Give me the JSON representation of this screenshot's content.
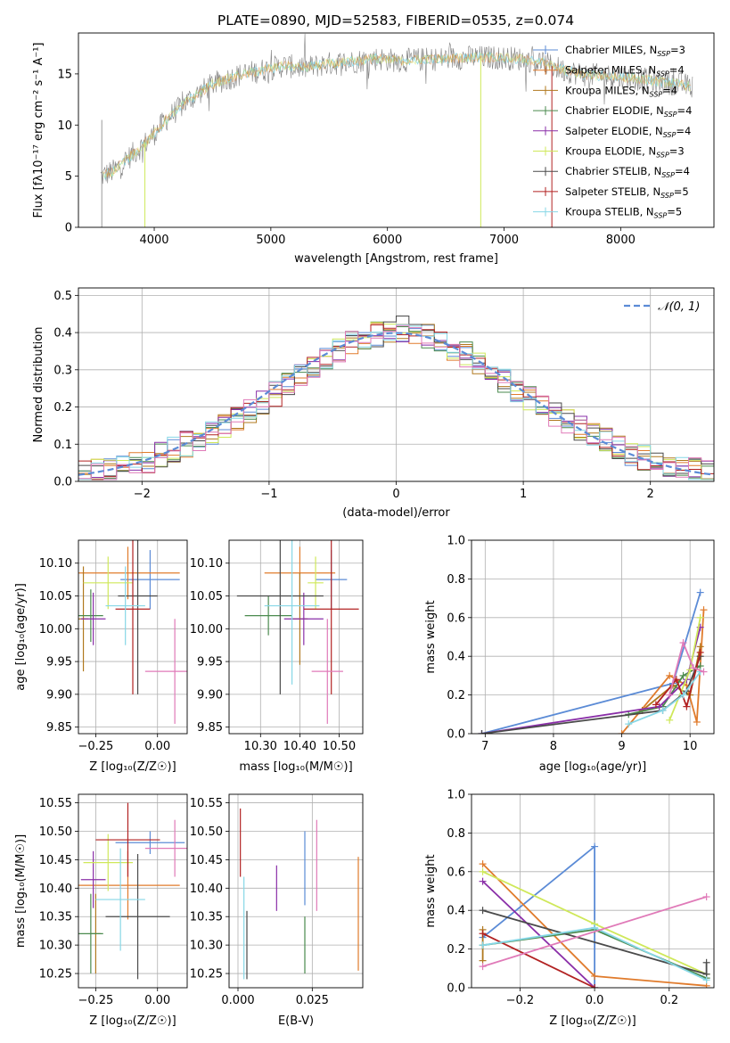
{
  "title": "PLATE=0890, MJD=52583, FIBERID=0535, z=0.074",
  "colors": {
    "Chabrier MILES": "#5b8bd6",
    "Salpeter MILES": "#e07b2c",
    "Kroupa MILES": "#b0781e",
    "Chabrier ELODIE": "#4a8a4e",
    "Salpeter ELODIE": "#8a2fa8",
    "Kroupa ELODIE": "#cfe85a",
    "Chabrier STELIB": "#4a4a4a",
    "Salpeter STELIB": "#b22222",
    "Kroupa STELIB": "#86d7e6",
    "extra_pink": "#e07ab8",
    "gaussian": "#5b8bd6",
    "spectrum": "#808080"
  },
  "chart_data": [
    {
      "type": "line",
      "title": "PLATE=0890, MJD=52583, FIBERID=0535, z=0.074",
      "xlabel": "wavelength [Angstrom, rest frame]",
      "ylabel": "Flux [f_λ 10^-17 erg cm^-2 s^-1 A^-1]",
      "xlim": [
        3350,
        8800
      ],
      "ylim": [
        0,
        19
      ],
      "xticks": [
        4000,
        5000,
        6000,
        7000,
        8000
      ],
      "yticks": [
        0,
        5,
        10,
        15
      ],
      "legend_position": "right",
      "legend": [
        {
          "label": "Chabrier MILES, N_SSP=3",
          "main": "Chabrier MILES, N",
          "sub": "SSP",
          "tail": "=3"
        },
        {
          "label": "Salpeter MILES, N_SSP=4",
          "main": "Salpeter MILES, N",
          "sub": "SSP",
          "tail": "=4"
        },
        {
          "label": "Kroupa MILES, N_SSP=4",
          "main": "Kroupa MILES, N",
          "sub": "SSP",
          "tail": "=4"
        },
        {
          "label": "Chabrier ELODIE, N_SSP=4",
          "main": "Chabrier ELODIE, N",
          "sub": "SSP",
          "tail": "=4"
        },
        {
          "label": "Salpeter ELODIE, N_SSP=4",
          "main": "Salpeter ELODIE, N",
          "sub": "SSP",
          "tail": "=4"
        },
        {
          "label": "Kroupa ELODIE, N_SSP=3",
          "main": "Kroupa ELODIE, N",
          "sub": "SSP",
          "tail": "=3"
        },
        {
          "label": "Chabrier STELIB, N_SSP=4",
          "main": "Chabrier STELIB, N",
          "sub": "SSP",
          "tail": "=4"
        },
        {
          "label": "Salpeter STELIB, N_SSP=5",
          "main": "Salpeter STELIB, N",
          "sub": "SSP",
          "tail": "=5"
        },
        {
          "label": "Kroupa STELIB, N_SSP=5",
          "main": "Kroupa STELIB, N",
          "sub": "SSP",
          "tail": "=5"
        }
      ],
      "envelope": {
        "wavelength": [
          3550,
          3650,
          3750,
          3850,
          3950,
          4100,
          4300,
          4500,
          4700,
          4900,
          5100,
          5300,
          5500,
          5700,
          5900,
          6100,
          6300,
          6500,
          6700,
          6900,
          7100,
          7300,
          7500,
          7700,
          7900,
          8100,
          8300,
          8500,
          8600
        ],
        "flux": [
          5.0,
          5.5,
          6.5,
          7.5,
          8.5,
          10.5,
          12.5,
          14.0,
          14.8,
          15.3,
          15.8,
          15.6,
          16.0,
          16.2,
          16.5,
          16.3,
          16.4,
          16.5,
          16.6,
          16.6,
          16.5,
          16.2,
          15.4,
          14.9,
          14.8,
          14.6,
          14.3,
          14.0,
          13.8
        ]
      }
    },
    {
      "type": "bar",
      "xlabel": "(data-model)/error",
      "ylabel": "Normed distribution",
      "xlim": [
        -2.5,
        2.5
      ],
      "ylim": [
        0,
        0.52
      ],
      "xticks": [
        -2,
        -1,
        0,
        1,
        2
      ],
      "yticks": [
        0.0,
        0.1,
        0.2,
        0.3,
        0.4,
        0.5
      ],
      "grid": true,
      "legend_position": "top-right",
      "legend_label": "𝒩(0, 1)",
      "bin_width": 0.1,
      "bin_start": -2.5,
      "mean_histogram": [
        0.02,
        0.025,
        0.03,
        0.04,
        0.045,
        0.055,
        0.07,
        0.085,
        0.1,
        0.115,
        0.13,
        0.15,
        0.17,
        0.19,
        0.21,
        0.235,
        0.26,
        0.28,
        0.3,
        0.33,
        0.35,
        0.37,
        0.385,
        0.395,
        0.4,
        0.41,
        0.4,
        0.39,
        0.375,
        0.355,
        0.34,
        0.315,
        0.29,
        0.27,
        0.245,
        0.22,
        0.2,
        0.18,
        0.16,
        0.14,
        0.125,
        0.11,
        0.09,
        0.075,
        0.065,
        0.055,
        0.045,
        0.035,
        0.03,
        0.025
      ]
    },
    {
      "type": "scatter",
      "xlabel": "Z [log10(Z/Z☉)]",
      "ylabel": "age [log10(age/yr)]",
      "xlim": [
        -0.32,
        0.12
      ],
      "ylim": [
        9.84,
        10.135
      ],
      "xticks": [
        -0.25,
        0.0
      ],
      "yticks": [
        9.85,
        9.9,
        9.95,
        10.0,
        10.05,
        10.1
      ],
      "grid": true,
      "points": [
        {
          "x": -0.03,
          "y": 10.075,
          "xerr": 0.12,
          "yerr": 0.045,
          "color": "#5b8bd6"
        },
        {
          "x": -0.12,
          "y": 10.085,
          "xerr": 0.21,
          "yerr": 0.04,
          "color": "#e07b2c"
        },
        {
          "x": -0.3,
          "y": 10.015,
          "xerr": 0.02,
          "yerr": 0.08,
          "color": "#b0781e"
        },
        {
          "x": -0.27,
          "y": 10.02,
          "xerr": 0.05,
          "yerr": 0.04,
          "color": "#4a8a4e"
        },
        {
          "x": -0.26,
          "y": 10.015,
          "xerr": 0.05,
          "yerr": 0.04,
          "color": "#8a2fa8"
        },
        {
          "x": -0.2,
          "y": 10.07,
          "xerr": 0.1,
          "yerr": 0.04,
          "color": "#cfe85a"
        },
        {
          "x": -0.08,
          "y": 10.05,
          "xerr": 0.08,
          "yerr": 0.15,
          "color": "#4a4a4a"
        },
        {
          "x": -0.1,
          "y": 10.03,
          "xerr": 0.07,
          "yerr": 0.13,
          "color": "#b22222"
        },
        {
          "x": -0.13,
          "y": 10.035,
          "xerr": 0.08,
          "yerr": 0.06,
          "color": "#86d7e6"
        },
        {
          "x": 0.07,
          "y": 9.935,
          "xerr": 0.12,
          "yerr": 0.08,
          "color": "#e07ab8"
        }
      ]
    },
    {
      "type": "scatter",
      "xlabel": "mass [log10(M/M☉)]",
      "xlim": [
        10.22,
        10.56
      ],
      "ylim": [
        9.84,
        10.135
      ],
      "xticks": [
        10.3,
        10.4,
        10.5
      ],
      "yticks": [
        9.85,
        9.9,
        9.95,
        10.0,
        10.05,
        10.1
      ],
      "grid": true,
      "points": [
        {
          "x": 10.48,
          "y": 10.075,
          "xerr": 0.04,
          "yerr": 0.045,
          "color": "#5b8bd6"
        },
        {
          "x": 10.4,
          "y": 10.085,
          "xerr": 0.09,
          "yerr": 0.04,
          "color": "#e07b2c"
        },
        {
          "x": 10.4,
          "y": 10.015,
          "xerr": 0.02,
          "yerr": 0.07,
          "color": "#b0781e"
        },
        {
          "x": 10.32,
          "y": 10.02,
          "xerr": 0.06,
          "yerr": 0.03,
          "color": "#4a8a4e"
        },
        {
          "x": 10.41,
          "y": 10.015,
          "xerr": 0.05,
          "yerr": 0.04,
          "color": "#8a2fa8"
        },
        {
          "x": 10.44,
          "y": 10.07,
          "xerr": 0.02,
          "yerr": 0.04,
          "color": "#cfe85a"
        },
        {
          "x": 10.35,
          "y": 10.05,
          "xerr": 0.11,
          "yerr": 0.15,
          "color": "#4a4a4a"
        },
        {
          "x": 10.48,
          "y": 10.03,
          "xerr": 0.07,
          "yerr": 0.13,
          "color": "#b22222"
        },
        {
          "x": 10.38,
          "y": 10.035,
          "xerr": 0.07,
          "yerr": 0.12,
          "color": "#86d7e6"
        },
        {
          "x": 10.47,
          "y": 9.935,
          "xerr": 0.04,
          "yerr": 0.08,
          "color": "#e07ab8"
        }
      ]
    },
    {
      "type": "line",
      "xlabel": "age [log10(age/yr)]",
      "ylabel": "mass weight",
      "xlim": [
        6.8,
        10.35
      ],
      "ylim": [
        0,
        1
      ],
      "xticks": [
        7,
        8,
        9,
        10
      ],
      "yticks": [
        0.0,
        0.2,
        0.4,
        0.6,
        0.8,
        1.0
      ],
      "grid": true,
      "series": [
        {
          "color": "#5b8bd6",
          "x": [
            6.95,
            9.75,
            10.15
          ],
          "y": [
            0.0,
            0.26,
            0.73
          ]
        },
        {
          "color": "#e07b2c",
          "x": [
            9.0,
            9.7,
            9.95,
            10.1,
            10.2
          ],
          "y": [
            0.0,
            0.3,
            0.25,
            0.06,
            0.64
          ]
        },
        {
          "color": "#b0781e",
          "x": [
            9.3,
            9.75,
            10.0,
            10.15
          ],
          "y": [
            0.12,
            0.25,
            0.2,
            0.45
          ]
        },
        {
          "color": "#4a8a4e",
          "x": [
            9.1,
            9.6,
            9.9,
            10.15
          ],
          "y": [
            0.1,
            0.14,
            0.3,
            0.35
          ]
        },
        {
          "color": "#8a2fa8",
          "x": [
            6.95,
            9.55,
            9.95,
            10.15
          ],
          "y": [
            0.0,
            0.14,
            0.28,
            0.55
          ]
        },
        {
          "color": "#cfe85a",
          "x": [
            9.7,
            10.0,
            10.15
          ],
          "y": [
            0.07,
            0.33,
            0.6
          ]
        },
        {
          "color": "#4a4a4a",
          "x": [
            6.95,
            9.6,
            9.95,
            10.15
          ],
          "y": [
            0.0,
            0.12,
            0.22,
            0.4
          ]
        },
        {
          "color": "#b22222",
          "x": [
            9.5,
            9.8,
            9.95,
            10.15
          ],
          "y": [
            0.15,
            0.28,
            0.14,
            0.42
          ]
        },
        {
          "color": "#86d7e6",
          "x": [
            9.1,
            9.6,
            9.9,
            10.15
          ],
          "y": [
            0.05,
            0.12,
            0.2,
            0.32
          ]
        },
        {
          "color": "#e07ab8",
          "x": [
            9.7,
            9.9,
            10.05,
            10.2
          ],
          "y": [
            0.2,
            0.47,
            0.34,
            0.32
          ]
        }
      ]
    },
    {
      "type": "scatter",
      "xlabel": "Z [log10(Z/Z☉)]",
      "ylabel": "mass [log10(M/M☉)]",
      "xlim": [
        -0.32,
        0.12
      ],
      "ylim": [
        10.225,
        10.565
      ],
      "xticks": [
        -0.25,
        0.0
      ],
      "yticks": [
        10.25,
        10.3,
        10.35,
        10.4,
        10.45,
        10.5,
        10.55
      ],
      "grid": true,
      "points": [
        {
          "x": -0.03,
          "y": 10.48,
          "xerr": 0.14,
          "yerr": 0.02,
          "color": "#5b8bd6"
        },
        {
          "x": -0.12,
          "y": 10.405,
          "xerr": 0.21,
          "yerr": 0.06,
          "color": "#e07b2c"
        },
        {
          "x": -0.25,
          "y": 10.32,
          "xerr": 0.02,
          "yerr": 0.07,
          "color": "#b0781e"
        },
        {
          "x": -0.27,
          "y": 10.32,
          "xerr": 0.05,
          "yerr": 0.07,
          "color": "#4a8a4e"
        },
        {
          "x": -0.26,
          "y": 10.415,
          "xerr": 0.05,
          "yerr": 0.05,
          "color": "#8a2fa8"
        },
        {
          "x": -0.2,
          "y": 10.445,
          "xerr": 0.1,
          "yerr": 0.05,
          "color": "#cfe85a"
        },
        {
          "x": -0.08,
          "y": 10.35,
          "xerr": 0.13,
          "yerr": 0.11,
          "color": "#4a4a4a"
        },
        {
          "x": -0.12,
          "y": 10.485,
          "xerr": 0.13,
          "yerr": 0.065,
          "color": "#b22222"
        },
        {
          "x": -0.15,
          "y": 10.38,
          "xerr": 0.1,
          "yerr": 0.09,
          "color": "#86d7e6"
        },
        {
          "x": 0.07,
          "y": 10.47,
          "xerr": 0.12,
          "yerr": 0.05,
          "color": "#e07ab8"
        }
      ]
    },
    {
      "type": "scatter",
      "xlabel": "E(B-V)",
      "xlim": [
        -0.003,
        0.042
      ],
      "ylim": [
        10.225,
        10.565
      ],
      "xticks": [
        0.0,
        0.025
      ],
      "yticks": [
        10.25,
        10.3,
        10.35,
        10.4,
        10.45,
        10.5,
        10.55
      ],
      "grid": true,
      "points": [
        {
          "x": 0.0008,
          "y": 10.48,
          "yerr": 0.06,
          "color": "#b22222"
        },
        {
          "x": 0.002,
          "y": 10.33,
          "yerr": 0.09,
          "color": "#86d7e6"
        },
        {
          "x": 0.003,
          "y": 10.3,
          "yerr": 0.06,
          "color": "#4a4a4a"
        },
        {
          "x": 0.013,
          "y": 10.4,
          "yerr": 0.04,
          "color": "#8a2fa8"
        },
        {
          "x": 0.0225,
          "y": 10.435,
          "yerr": 0.065,
          "color": "#5b8bd6"
        },
        {
          "x": 0.0225,
          "y": 10.3,
          "yerr": 0.05,
          "color": "#4a8a4e"
        },
        {
          "x": 0.0265,
          "y": 10.44,
          "yerr": 0.08,
          "color": "#e07ab8"
        },
        {
          "x": 0.0405,
          "y": 10.355,
          "yerr": 0.1,
          "color": "#e07b2c"
        }
      ]
    },
    {
      "type": "line",
      "xlabel": "Z [log10(Z/Z☉)]",
      "ylabel": "mass weight",
      "xlim": [
        -0.33,
        0.32
      ],
      "ylim": [
        0,
        1
      ],
      "xticks": [
        -0.2,
        0.0,
        0.2
      ],
      "yticks": [
        0.0,
        0.2,
        0.4,
        0.6,
        0.8,
        1.0
      ],
      "grid": true,
      "series": [
        {
          "color": "#5b8bd6",
          "x": [
            -0.3,
            0.0,
            0.0
          ],
          "y": [
            0.26,
            0.73,
            0.0
          ]
        },
        {
          "color": "#e07b2c",
          "x": [
            -0.3,
            0.0,
            0.3
          ],
          "y": [
            0.64,
            0.06,
            0.01
          ]
        },
        {
          "color": "#b0781e",
          "x": [
            -0.3,
            -0.3
          ],
          "y": [
            0.3,
            0.14
          ]
        },
        {
          "color": "#4a8a4e",
          "x": [
            -0.3,
            0.0,
            0.3
          ],
          "y": [
            0.22,
            0.3,
            0.05
          ]
        },
        {
          "color": "#8a2fa8",
          "x": [
            -0.3,
            0.0
          ],
          "y": [
            0.55,
            0.0
          ]
        },
        {
          "color": "#cfe85a",
          "x": [
            -0.3,
            0.0,
            0.3
          ],
          "y": [
            0.6,
            0.33,
            0.07
          ]
        },
        {
          "color": "#4a4a4a",
          "x": [
            -0.3,
            0.3,
            0.3
          ],
          "y": [
            0.4,
            0.07,
            0.13
          ]
        },
        {
          "color": "#b22222",
          "x": [
            -0.3,
            0.0
          ],
          "y": [
            0.28,
            0.0
          ]
        },
        {
          "color": "#86d7e6",
          "x": [
            -0.3,
            0.0,
            0.3
          ],
          "y": [
            0.22,
            0.31,
            0.04
          ]
        },
        {
          "color": "#e07ab8",
          "x": [
            -0.3,
            0.3
          ],
          "y": [
            0.11,
            0.47
          ]
        }
      ]
    }
  ]
}
